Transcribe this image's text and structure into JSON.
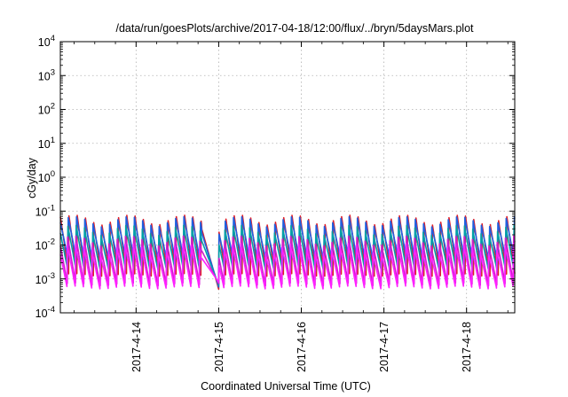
{
  "chart_data": {
    "type": "line",
    "title": "/data/run/goesPlots/archive/2017-04-18/12:00/flux/../bryn/5daysMars.plot",
    "xlabel": "Coordinated Universal Time (UTC)",
    "ylabel": "cGy/day",
    "y_scale": "log",
    "ylim": [
      0.0001,
      10000
    ],
    "y_tick_labels": [
      {
        "base": "10",
        "exp": "-4",
        "value": 0.0001
      },
      {
        "base": "10",
        "exp": "-3",
        "value": 0.001
      },
      {
        "base": "10",
        "exp": "-2",
        "value": 0.01
      },
      {
        "base": "10",
        "exp": "-1",
        "value": 0.1
      },
      {
        "base": "10",
        "exp": "0",
        "value": 1
      },
      {
        "base": "10",
        "exp": "1",
        "value": 10
      },
      {
        "base": "10",
        "exp": "2",
        "value": 100
      },
      {
        "base": "10",
        "exp": "3",
        "value": 1000
      },
      {
        "base": "10",
        "exp": "4",
        "value": 10000
      }
    ],
    "xlim": [
      "2017-04-13 02:00",
      "2017-04-18 14:00"
    ],
    "x_ticks": [
      "2017-4-14",
      "2017-4-15",
      "2017-4-16",
      "2017-4-17",
      "2017-4-18"
    ],
    "grid": true,
    "legend": "none",
    "pattern": {
      "period_hours": 2.4,
      "gap": {
        "start": "2017-04-14 19:00",
        "end": "2017-04-15 00:00",
        "end_value": 0.0005
      }
    },
    "series": [
      {
        "color": "#e0202a",
        "peak": 0.09,
        "trough": 0.0012
      },
      {
        "color": "#2060e0",
        "peak": 0.07,
        "trough": 0.003
      },
      {
        "color": "#00a0a8",
        "peak": 0.04,
        "trough": 0.0015
      },
      {
        "color": "#cc20cc",
        "peak": 0.02,
        "trough": 0.0006
      },
      {
        "color": "#ff20ff",
        "peak": 0.012,
        "trough": 0.0005
      }
    ]
  }
}
